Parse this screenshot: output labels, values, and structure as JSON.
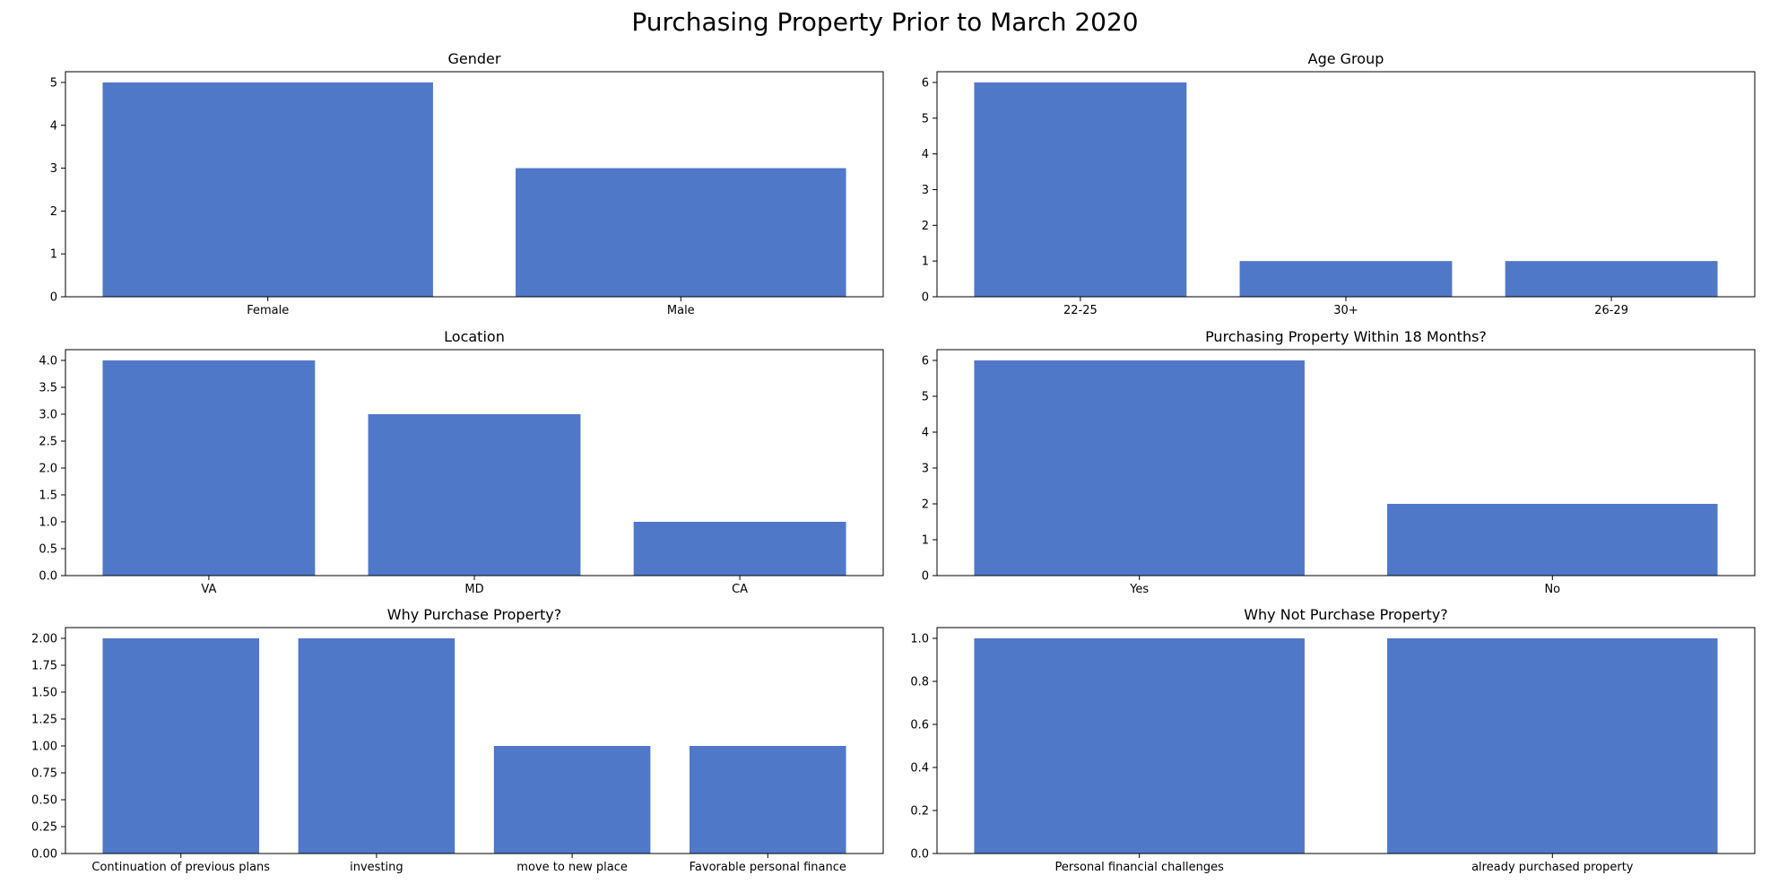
{
  "figure": {
    "title": "Purchasing Property Prior to March 2020",
    "bar_color": "#5078c8"
  },
  "chart_data": [
    {
      "type": "bar",
      "title": "Gender",
      "categories": [
        "Female",
        "Male"
      ],
      "values": [
        5,
        3
      ],
      "ylim": [
        0,
        5.25
      ],
      "yticks": [
        "0",
        "1",
        "2",
        "3",
        "4",
        "5"
      ],
      "ytick_values": [
        0,
        1,
        2,
        3,
        4,
        5
      ],
      "grid": false,
      "legend": "none"
    },
    {
      "type": "bar",
      "title": "Age Group",
      "categories": [
        "22-25",
        "30+",
        "26-29"
      ],
      "values": [
        6,
        1,
        1
      ],
      "ylim": [
        0,
        6.3
      ],
      "yticks": [
        "0",
        "1",
        "2",
        "3",
        "4",
        "5",
        "6"
      ],
      "ytick_values": [
        0,
        1,
        2,
        3,
        4,
        5,
        6
      ],
      "grid": false,
      "legend": "none"
    },
    {
      "type": "bar",
      "title": "Location",
      "categories": [
        "VA",
        "MD",
        "CA"
      ],
      "values": [
        4,
        3,
        1
      ],
      "ylim": [
        0,
        4.2
      ],
      "yticks": [
        "0.0",
        "0.5",
        "1.0",
        "1.5",
        "2.0",
        "2.5",
        "3.0",
        "3.5",
        "4.0"
      ],
      "ytick_values": [
        0,
        0.5,
        1,
        1.5,
        2,
        2.5,
        3,
        3.5,
        4
      ],
      "grid": false,
      "legend": "none"
    },
    {
      "type": "bar",
      "title": "Purchasing Property Within 18 Months?",
      "categories": [
        "Yes",
        "No"
      ],
      "values": [
        6,
        2
      ],
      "ylim": [
        0,
        6.3
      ],
      "yticks": [
        "0",
        "1",
        "2",
        "3",
        "4",
        "5",
        "6"
      ],
      "ytick_values": [
        0,
        1,
        2,
        3,
        4,
        5,
        6
      ],
      "grid": false,
      "legend": "none"
    },
    {
      "type": "bar",
      "title": "Why Purchase Property?",
      "categories": [
        "Continuation of previous plans",
        "investing",
        "move to new place",
        "Favorable personal finance"
      ],
      "values": [
        2,
        2,
        1,
        1
      ],
      "ylim": [
        0,
        2.1
      ],
      "yticks": [
        "0.00",
        "0.25",
        "0.50",
        "0.75",
        "1.00",
        "1.25",
        "1.50",
        "1.75",
        "2.00"
      ],
      "ytick_values": [
        0,
        0.25,
        0.5,
        0.75,
        1,
        1.25,
        1.5,
        1.75,
        2
      ],
      "grid": false,
      "legend": "none"
    },
    {
      "type": "bar",
      "title": "Why Not Purchase Property?",
      "categories": [
        "Personal financial challenges",
        "already purchased property"
      ],
      "values": [
        1,
        1
      ],
      "ylim": [
        0,
        1.05
      ],
      "yticks": [
        "0.0",
        "0.2",
        "0.4",
        "0.6",
        "0.8",
        "1.0"
      ],
      "ytick_values": [
        0,
        0.2,
        0.4,
        0.6,
        0.8,
        1.0
      ],
      "grid": false,
      "legend": "none"
    }
  ]
}
